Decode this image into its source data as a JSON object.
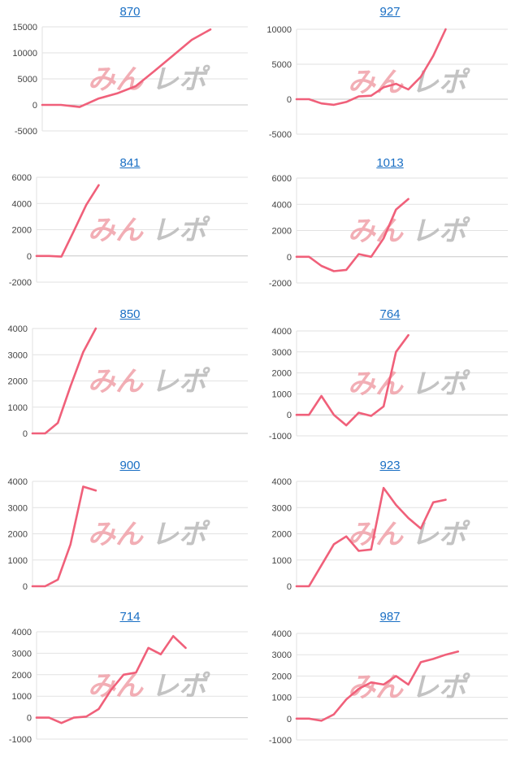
{
  "colors": {
    "line": "#f0607a",
    "title": "#1a6fc4",
    "watermark_pink": "#f0a0a8",
    "watermark_gray": "#b8b8b8"
  },
  "watermark": {
    "part1": "みん",
    "part2": "レポ"
  },
  "chart_data": [
    {
      "type": "line",
      "title": "870",
      "yticks": [
        -5000,
        0,
        5000,
        10000,
        15000
      ],
      "ylim": [
        -5000,
        15000
      ],
      "xlim": [
        0,
        11
      ],
      "series": [
        {
          "values": [
            0,
            0,
            -400,
            1200,
            2200,
            3600,
            6500,
            9500,
            12500,
            14500
          ]
        }
      ]
    },
    {
      "type": "line",
      "title": "927",
      "yticks": [
        -5000,
        0,
        5000,
        10000
      ],
      "ylim": [
        -5000,
        10000
      ],
      "xlim": [
        0,
        17
      ],
      "series": [
        {
          "values": [
            0,
            0,
            -600,
            -800,
            -400,
            400,
            500,
            1700,
            2200,
            1400,
            3200,
            6200,
            10000
          ]
        }
      ]
    },
    {
      "type": "line",
      "title": "841",
      "yticks": [
        -2000,
        0,
        2000,
        4000,
        6000
      ],
      "ylim": [
        -2000,
        6000
      ],
      "xlim": [
        0,
        17
      ],
      "series": [
        {
          "values": [
            0,
            0,
            -50,
            1900,
            3900,
            5400
          ]
        }
      ]
    },
    {
      "type": "line",
      "title": "1013",
      "yticks": [
        -2000,
        0,
        2000,
        4000,
        6000
      ],
      "ylim": [
        -2000,
        6000
      ],
      "xlim": [
        0,
        17
      ],
      "series": [
        {
          "values": [
            0,
            0,
            -700,
            -1100,
            -1000,
            200,
            0,
            1400,
            3600,
            4400
          ]
        }
      ]
    },
    {
      "type": "line",
      "title": "850",
      "yticks": [
        0,
        1000,
        2000,
        3000,
        4000
      ],
      "ylim": [
        0,
        4000
      ],
      "xlim": [
        0,
        17
      ],
      "series": [
        {
          "values": [
            0,
            0,
            400,
            1800,
            3100,
            4000
          ]
        }
      ]
    },
    {
      "type": "line",
      "title": "764",
      "yticks": [
        -1000,
        0,
        1000,
        2000,
        3000,
        4000
      ],
      "ylim": [
        -1000,
        4000
      ],
      "xlim": [
        0,
        17
      ],
      "series": [
        {
          "values": [
            0,
            0,
            900,
            0,
            -500,
            100,
            -50,
            400,
            3000,
            3800
          ]
        }
      ]
    },
    {
      "type": "line",
      "title": "900",
      "yticks": [
        0,
        1000,
        2000,
        3000,
        4000
      ],
      "ylim": [
        0,
        4000
      ],
      "xlim": [
        0,
        17
      ],
      "series": [
        {
          "values": [
            0,
            0,
            250,
            1600,
            3800,
            3650
          ]
        }
      ]
    },
    {
      "type": "line",
      "title": "923",
      "yticks": [
        0,
        1000,
        2000,
        3000,
        4000
      ],
      "ylim": [
        0,
        4000
      ],
      "xlim": [
        0,
        17
      ],
      "series": [
        {
          "values": [
            0,
            0,
            800,
            1600,
            1900,
            1350,
            1400,
            3750,
            3100,
            2600,
            2200,
            3200,
            3300
          ]
        }
      ]
    },
    {
      "type": "line",
      "title": "714",
      "yticks": [
        -1000,
        0,
        1000,
        2000,
        3000,
        4000
      ],
      "ylim": [
        -1000,
        4000
      ],
      "xlim": [
        0,
        17
      ],
      "series": [
        {
          "values": [
            0,
            0,
            -250,
            0,
            50,
            400,
            1300,
            2000,
            2100,
            3250,
            2950,
            3800,
            3250
          ]
        }
      ]
    },
    {
      "type": "line",
      "title": "987",
      "yticks": [
        -1000,
        0,
        1000,
        2000,
        3000,
        4000
      ],
      "ylim": [
        -1000,
        4000
      ],
      "xlim": [
        0,
        17
      ],
      "series": [
        {
          "values": [
            0,
            0,
            -100,
            200,
            900,
            1400,
            1700,
            1600,
            2000,
            1600,
            2650,
            2800,
            3000,
            3150
          ]
        }
      ]
    }
  ]
}
